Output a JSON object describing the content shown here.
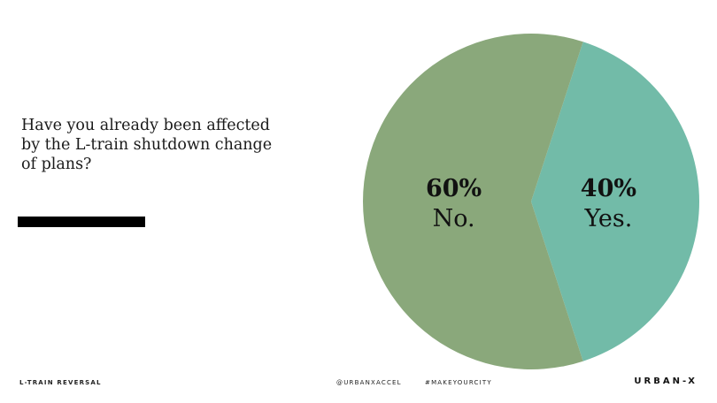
{
  "question": "Have you already been affected by the L-train shutdown change of plans?",
  "footer": {
    "left": "L-TRAIN REVERSAL",
    "handle": "@URBANXACCEL",
    "hashtag": "#MAKEYOURCITY",
    "brand": "URBAN-X"
  },
  "colors": {
    "no": "#8aa87b",
    "yes": "#72bba8",
    "text": "#111111"
  },
  "chart_data": {
    "type": "pie",
    "title": "",
    "slices": [
      {
        "label": "Yes.",
        "value": 40,
        "display": "40%",
        "color": "#72bba8"
      },
      {
        "label": "No.",
        "value": 60,
        "display": "60%",
        "color": "#8aa87b"
      }
    ],
    "start_angle_deg": 18,
    "direction": "clockwise"
  }
}
